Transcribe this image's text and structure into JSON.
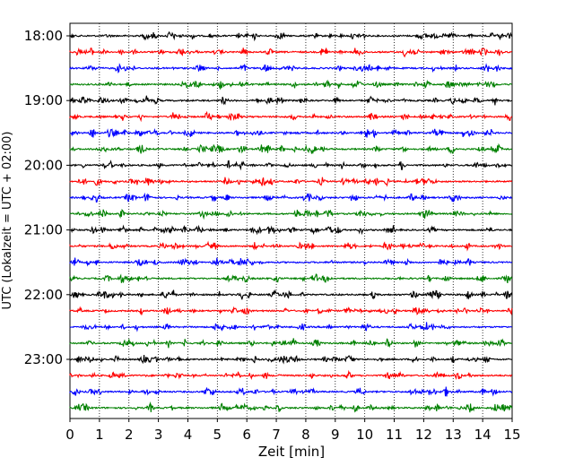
{
  "chart_data": {
    "type": "line",
    "title": "",
    "xlabel": "Zeit  [min]",
    "ylabel": "UTC (Lokalzeit = UTC + 02:00)",
    "xlim": [
      0,
      15
    ],
    "x_ticks": [
      "0",
      "1",
      "2",
      "3",
      "4",
      "5",
      "6",
      "7",
      "8",
      "9",
      "10",
      "11",
      "12",
      "13",
      "14",
      "15"
    ],
    "y_ticks": [
      "18:00",
      "19:00",
      "20:00",
      "21:00",
      "22:00",
      "23:00"
    ],
    "grid": "vertical-dotted",
    "trace_colors": [
      "#000000",
      "#ff0000",
      "#0000ff",
      "#008000"
    ],
    "trace_count": 24,
    "series": [
      {
        "start_utc": "18:00"
      },
      {
        "start_utc": "18:15"
      },
      {
        "start_utc": "18:30"
      },
      {
        "start_utc": "18:45"
      },
      {
        "start_utc": "19:00"
      },
      {
        "start_utc": "19:15"
      },
      {
        "start_utc": "19:30"
      },
      {
        "start_utc": "19:45"
      },
      {
        "start_utc": "20:00"
      },
      {
        "start_utc": "20:15"
      },
      {
        "start_utc": "20:30"
      },
      {
        "start_utc": "20:45"
      },
      {
        "start_utc": "21:00"
      },
      {
        "start_utc": "21:15"
      },
      {
        "start_utc": "21:30"
      },
      {
        "start_utc": "21:45"
      },
      {
        "start_utc": "22:00"
      },
      {
        "start_utc": "22:15"
      },
      {
        "start_utc": "22:30"
      },
      {
        "start_utc": "22:45"
      },
      {
        "start_utc": "23:00"
      },
      {
        "start_utc": "23:15"
      },
      {
        "start_utc": "23:30"
      },
      {
        "start_utc": "23:45"
      }
    ]
  }
}
